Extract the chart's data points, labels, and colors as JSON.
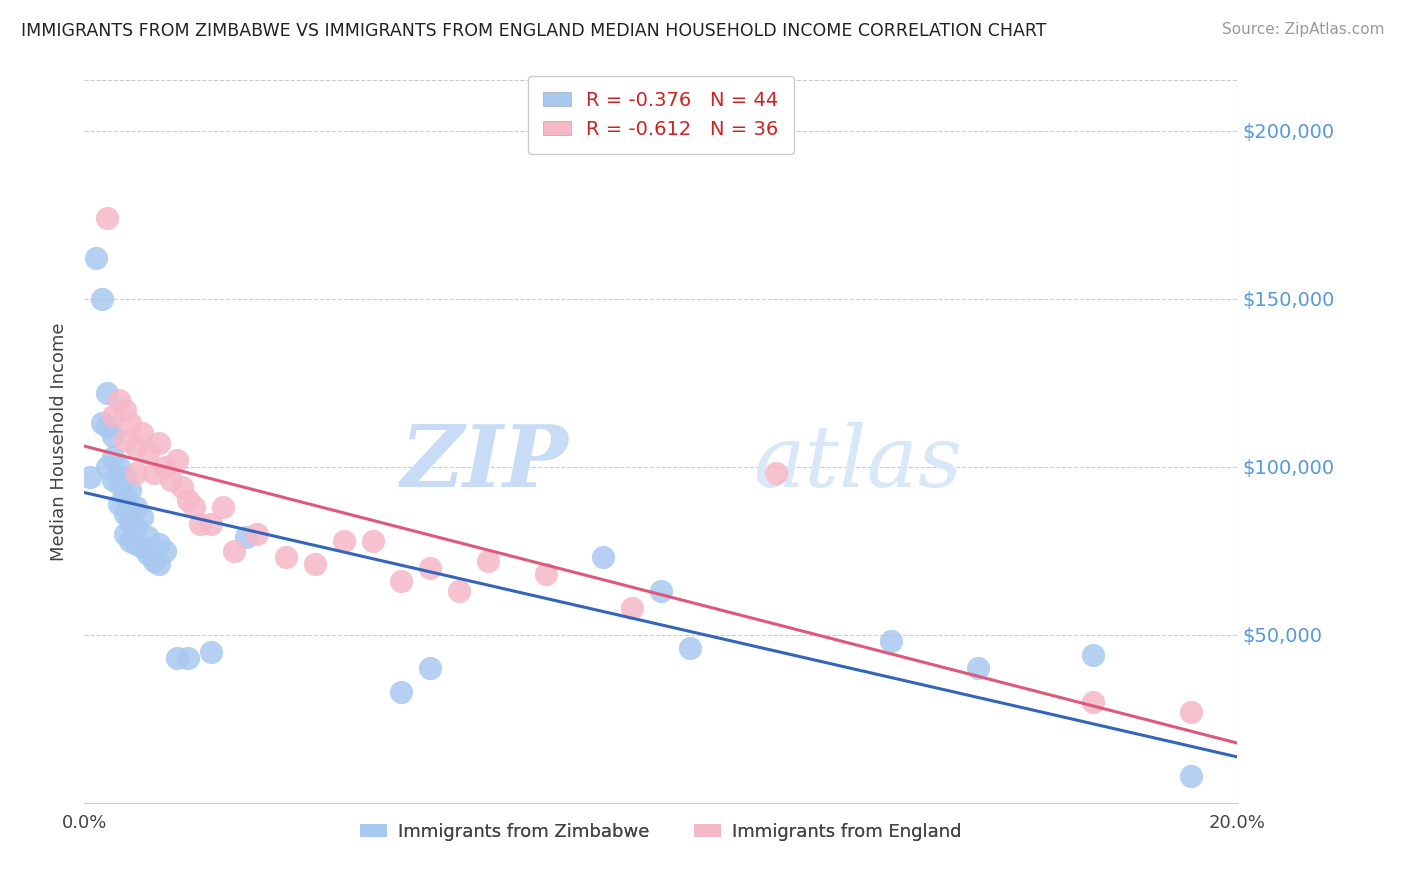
{
  "title": "IMMIGRANTS FROM ZIMBABWE VS IMMIGRANTS FROM ENGLAND MEDIAN HOUSEHOLD INCOME CORRELATION CHART",
  "source": "Source: ZipAtlas.com",
  "ylabel": "Median Household Income",
  "watermark_zip": "ZIP",
  "watermark_atlas": "atlas",
  "legend1_r": "-0.376",
  "legend1_n": "44",
  "legend2_r": "-0.612",
  "legend2_n": "36",
  "zim_color": "#A8C8F0",
  "eng_color": "#F5B8C8",
  "zim_line_color": "#3366BB",
  "eng_line_color": "#E05878",
  "ytick_values": [
    50000,
    100000,
    150000,
    200000
  ],
  "ytick_color": "#5599DD",
  "xlim": [
    0.0,
    0.2
  ],
  "ylim": [
    0,
    215000
  ],
  "zim_x": [
    0.001,
    0.002,
    0.003,
    0.003,
    0.004,
    0.004,
    0.004,
    0.005,
    0.005,
    0.005,
    0.006,
    0.006,
    0.006,
    0.007,
    0.007,
    0.007,
    0.007,
    0.008,
    0.008,
    0.008,
    0.009,
    0.009,
    0.009,
    0.01,
    0.01,
    0.011,
    0.011,
    0.012,
    0.013,
    0.013,
    0.014,
    0.016,
    0.018,
    0.022,
    0.028,
    0.055,
    0.06,
    0.09,
    0.1,
    0.105,
    0.14,
    0.155,
    0.175,
    0.192
  ],
  "zim_y": [
    97000,
    162000,
    150000,
    113000,
    122000,
    112000,
    100000,
    109000,
    103000,
    96000,
    100000,
    95000,
    89000,
    97000,
    91000,
    86000,
    80000,
    84000,
    93000,
    78000,
    82000,
    77000,
    88000,
    76000,
    85000,
    74000,
    79000,
    72000,
    71000,
    77000,
    75000,
    43000,
    43000,
    45000,
    79000,
    33000,
    40000,
    73000,
    63000,
    46000,
    48000,
    40000,
    44000,
    8000
  ],
  "eng_x": [
    0.004,
    0.005,
    0.006,
    0.007,
    0.007,
    0.008,
    0.009,
    0.009,
    0.01,
    0.011,
    0.012,
    0.013,
    0.014,
    0.015,
    0.016,
    0.017,
    0.018,
    0.019,
    0.02,
    0.022,
    0.024,
    0.026,
    0.03,
    0.035,
    0.04,
    0.045,
    0.05,
    0.055,
    0.06,
    0.065,
    0.07,
    0.08,
    0.095,
    0.12,
    0.175,
    0.192
  ],
  "eng_y": [
    174000,
    115000,
    120000,
    117000,
    108000,
    113000,
    106000,
    98000,
    110000,
    104000,
    98000,
    107000,
    100000,
    96000,
    102000,
    94000,
    90000,
    88000,
    83000,
    83000,
    88000,
    75000,
    80000,
    73000,
    71000,
    78000,
    78000,
    66000,
    70000,
    63000,
    72000,
    68000,
    58000,
    98000,
    30000,
    27000
  ]
}
